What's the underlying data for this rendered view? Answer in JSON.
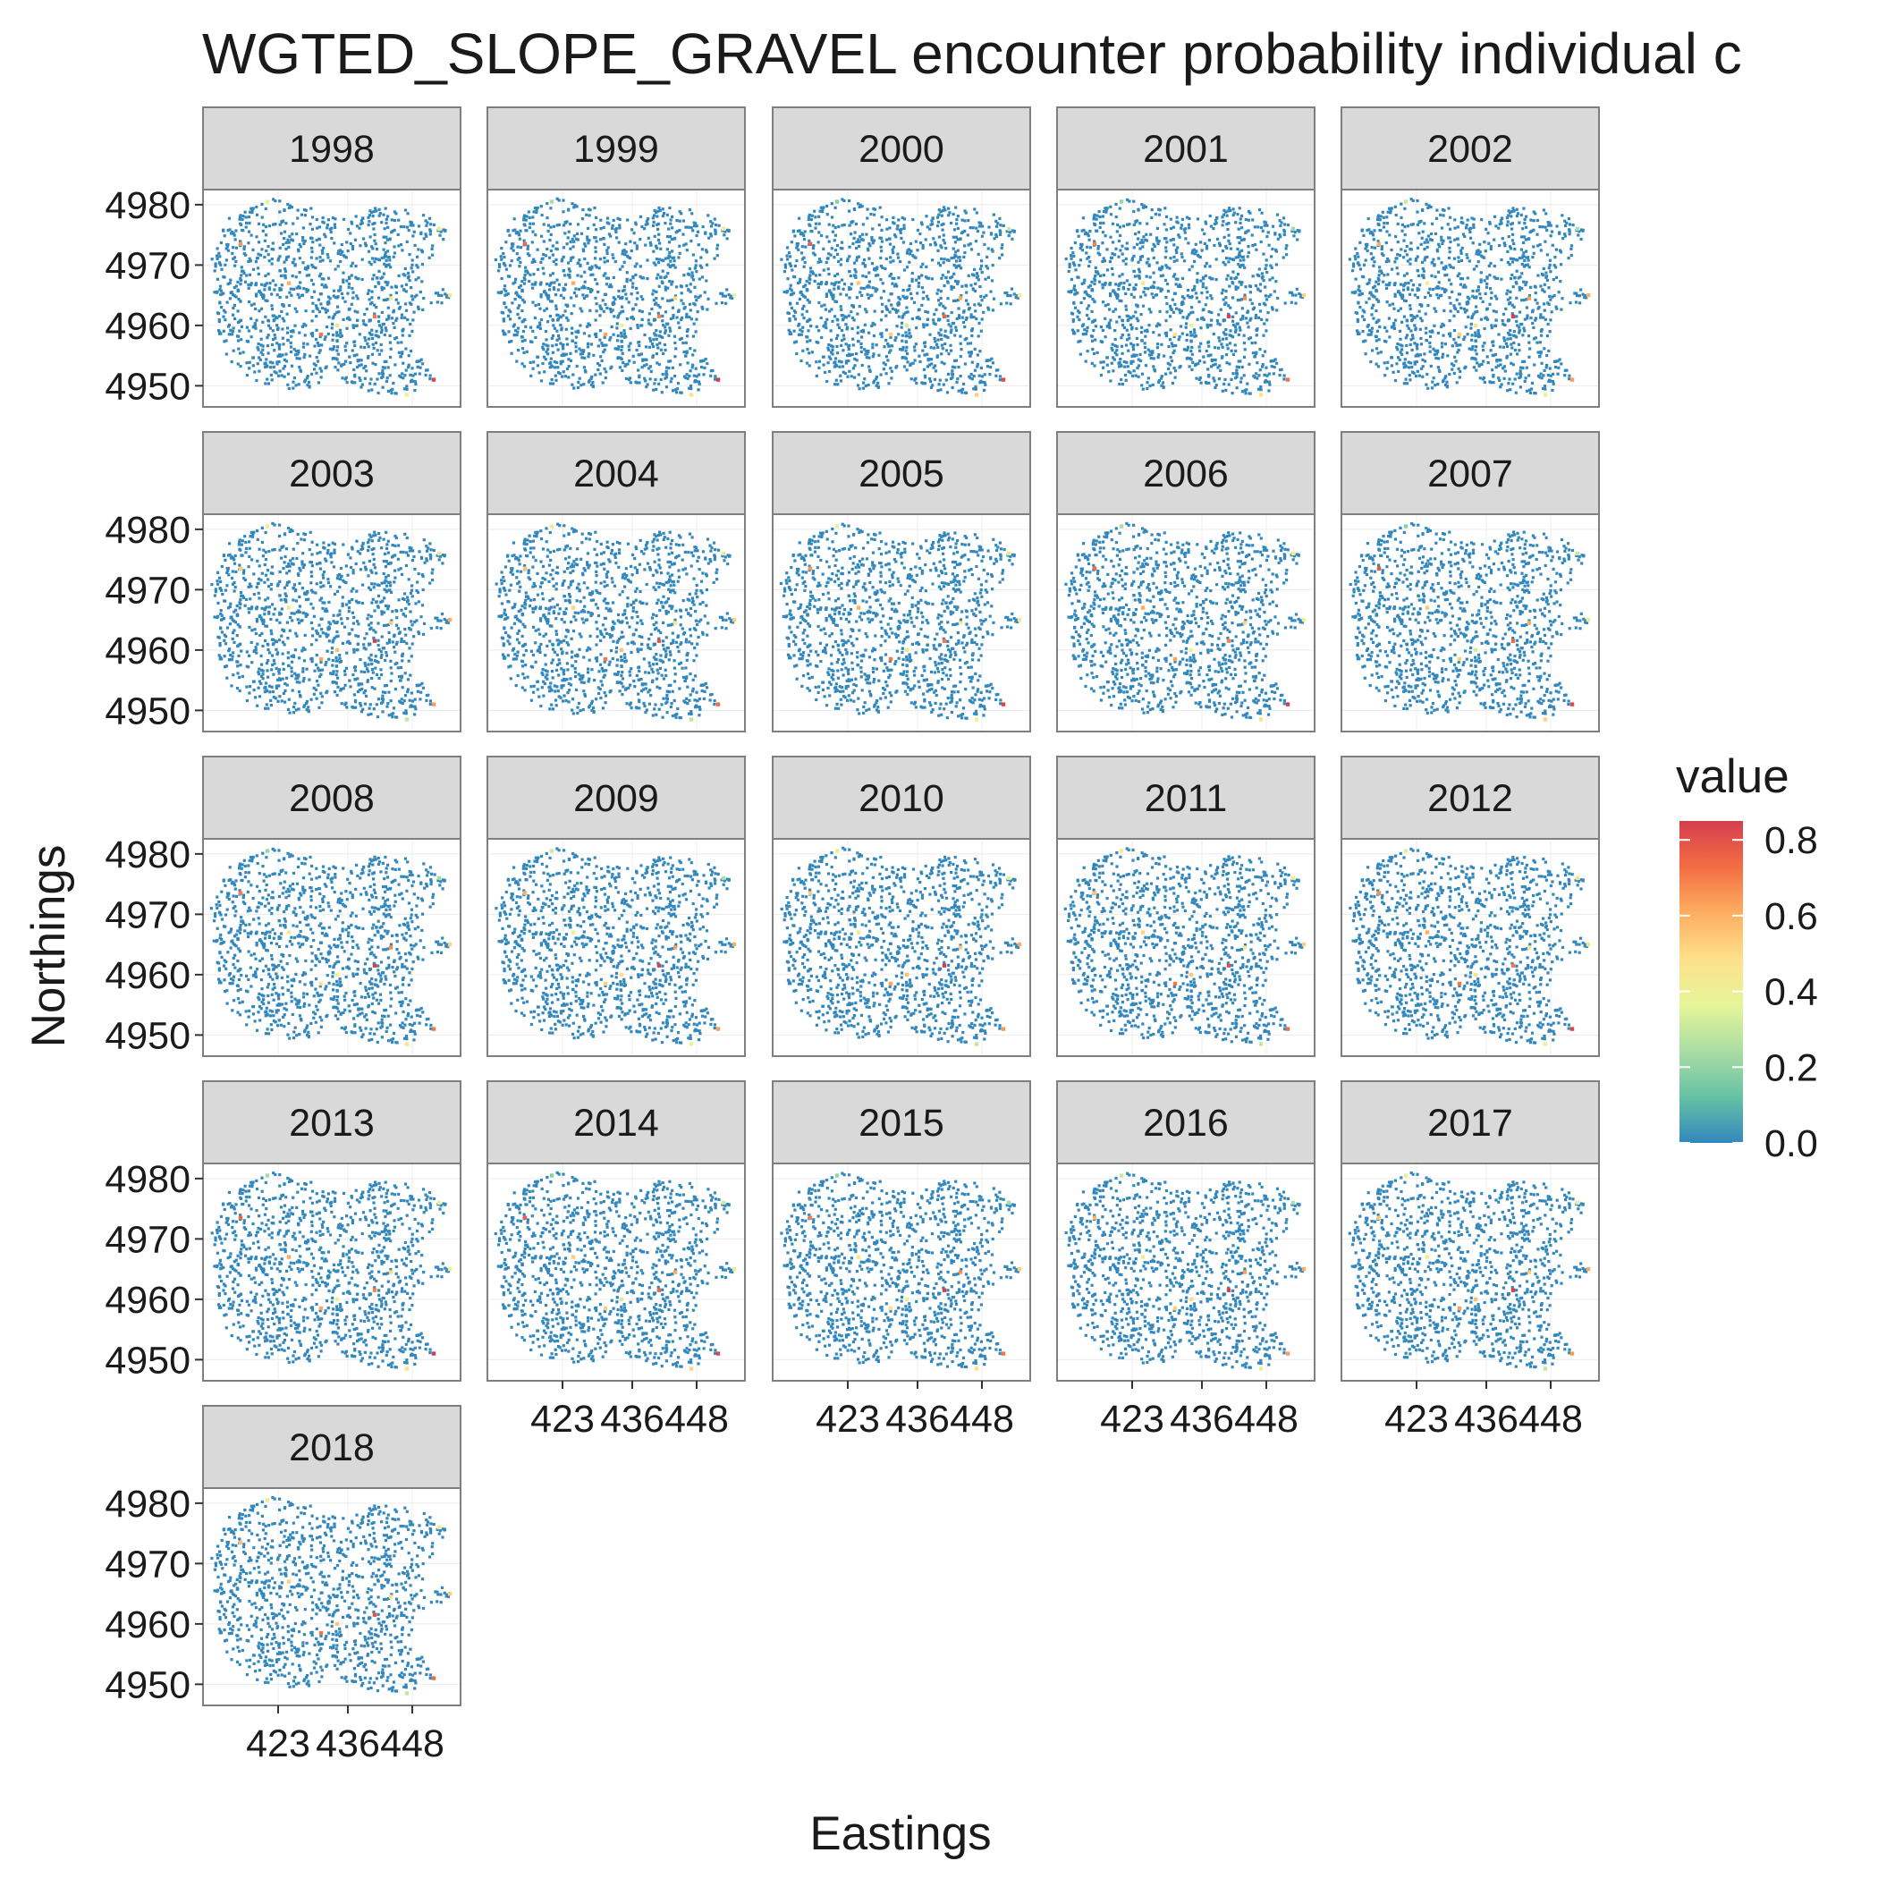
{
  "chart_data": {
    "type": "scatter",
    "title": "WGTED_SLOPE_GRAVEL encounter probability individual c",
    "xlabel": "Eastings",
    "ylabel": "Northings",
    "facet_variable": "year",
    "facets": [
      "1998",
      "1999",
      "2000",
      "2001",
      "2002",
      "2003",
      "2004",
      "2005",
      "2006",
      "2007",
      "2008",
      "2009",
      "2010",
      "2011",
      "2012",
      "2013",
      "2014",
      "2015",
      "2016",
      "2017",
      "2018"
    ],
    "facet_columns": 5,
    "xlim": [
      409,
      457
    ],
    "ylim": [
      4946.5,
      4982.5
    ],
    "x_ticks": [
      423,
      436,
      448
    ],
    "x_tick_labels": [
      "423",
      "436",
      "448"
    ],
    "y_ticks": [
      4950,
      4960,
      4970,
      4980
    ],
    "y_tick_labels": [
      "4950",
      "4960",
      "4970",
      "4980"
    ],
    "grid": true,
    "legend": {
      "title": "value",
      "position": "right",
      "range": [
        0,
        0.85
      ],
      "ticks": [
        0.0,
        0.2,
        0.4,
        0.6,
        0.8
      ],
      "tick_labels": [
        "0.0",
        "0.2",
        "0.4",
        "0.6",
        "0.8"
      ],
      "palette": [
        "#3288bd",
        "#66c2a5",
        "#abdda4",
        "#e6f598",
        "#fee08b",
        "#fdae61",
        "#f46d43",
        "#d53e4f"
      ]
    },
    "point_color_default": "#3288bd",
    "highlight_points": [
      {
        "x": 416,
        "y": 4973.5,
        "value": 0.65
      },
      {
        "x": 425,
        "y": 4967,
        "value": 0.5
      },
      {
        "x": 431,
        "y": 4958.5,
        "value": 0.6
      },
      {
        "x": 434,
        "y": 4960,
        "value": 0.45
      },
      {
        "x": 441,
        "y": 4961.5,
        "value": 0.8
      },
      {
        "x": 444,
        "y": 4964.5,
        "value": 0.55
      },
      {
        "x": 447,
        "y": 4948.5,
        "value": 0.4
      },
      {
        "x": 452,
        "y": 4951,
        "value": 0.75
      },
      {
        "x": 453,
        "y": 4976,
        "value": 0.35
      },
      {
        "x": 421,
        "y": 4980.5,
        "value": 0.3
      },
      {
        "x": 455,
        "y": 4965,
        "value": 0.5
      }
    ]
  }
}
